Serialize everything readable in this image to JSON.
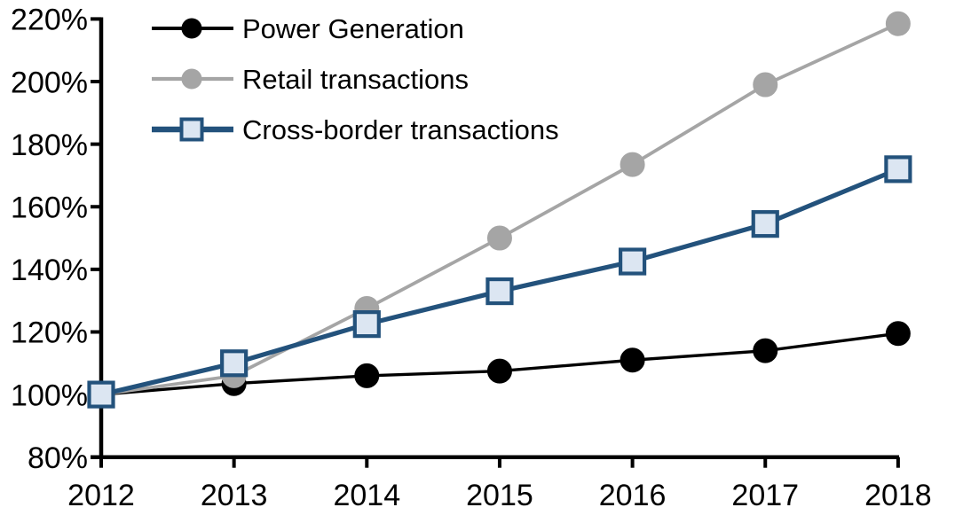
{
  "chart_data": {
    "type": "line",
    "x": [
      "2012",
      "2013",
      "2014",
      "2015",
      "2016",
      "2017",
      "2018"
    ],
    "series": [
      {
        "name": "Power Generation",
        "line_color": "#000000",
        "marker": "circle",
        "marker_fill": "#000000",
        "marker_stroke": "#000000",
        "values": [
          100,
          103.5,
          106,
          107.5,
          111,
          114,
          119.5
        ]
      },
      {
        "name": "Retail transactions",
        "line_color": "#a5a5a5",
        "marker": "circle",
        "marker_fill": "#a5a5a5",
        "marker_stroke": "#a5a5a5",
        "values": [
          100,
          106,
          127.5,
          150,
          173.5,
          199,
          218.5
        ]
      },
      {
        "name": "Cross-border transactions",
        "line_color": "#23527c",
        "marker": "square",
        "marker_fill": "#dce6f2",
        "marker_stroke": "#23527c",
        "values": [
          100,
          110,
          122.5,
          133,
          142.5,
          154.5,
          172
        ]
      }
    ],
    "xtick_labels": [
      "2012",
      "2013",
      "2014",
      "2015",
      "2016",
      "2017",
      "2018"
    ],
    "ytick_labels": [
      "80%",
      "100%",
      "120%",
      "140%",
      "160%",
      "180%",
      "200%",
      "220%"
    ],
    "ylim": [
      80,
      220
    ],
    "ytick_step": 20,
    "grid": false,
    "legend_position": "top-left",
    "axis_color": "#000000",
    "background_color": "#ffffff"
  }
}
